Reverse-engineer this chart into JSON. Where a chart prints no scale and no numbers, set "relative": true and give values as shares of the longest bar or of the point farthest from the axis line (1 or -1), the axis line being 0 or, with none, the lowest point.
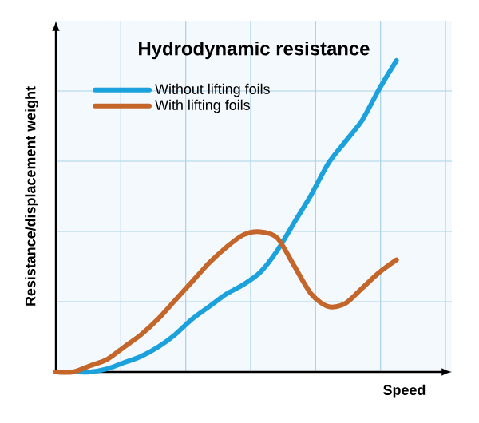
{
  "chart_data": {
    "type": "line",
    "title": "Hydrodynamic resistance",
    "xlabel": "Speed",
    "ylabel": "Resistance/displacement weight",
    "relative": true,
    "grid": true,
    "legend": "top left",
    "categories": [
      null,
      null,
      null,
      null,
      null,
      null,
      null,
      null,
      null,
      null,
      null,
      null,
      null,
      null,
      null,
      null,
      null,
      null,
      null,
      null,
      null
    ],
    "series": [
      {
        "name": "Without lifting foils",
        "color": "#1ba1dc",
        "values": [
          0,
          0,
          0,
          0.01,
          0.03,
          0.05,
          0.08,
          0.12,
          0.17,
          0.21,
          0.25,
          0.28,
          0.32,
          0.39,
          0.48,
          0.57,
          0.67,
          0.74,
          0.81,
          0.91,
          1
        ]
      },
      {
        "name": "With lifting foils",
        "color": "#c4662a",
        "values": [
          0,
          0,
          0.02,
          0.04,
          0.08,
          0.12,
          0.17,
          0.23,
          0.29,
          0.35,
          0.4,
          0.44,
          0.45,
          0.43,
          0.34,
          0.25,
          0.21,
          0.22,
          0.27,
          0.32,
          0.36
        ]
      }
    ]
  }
}
